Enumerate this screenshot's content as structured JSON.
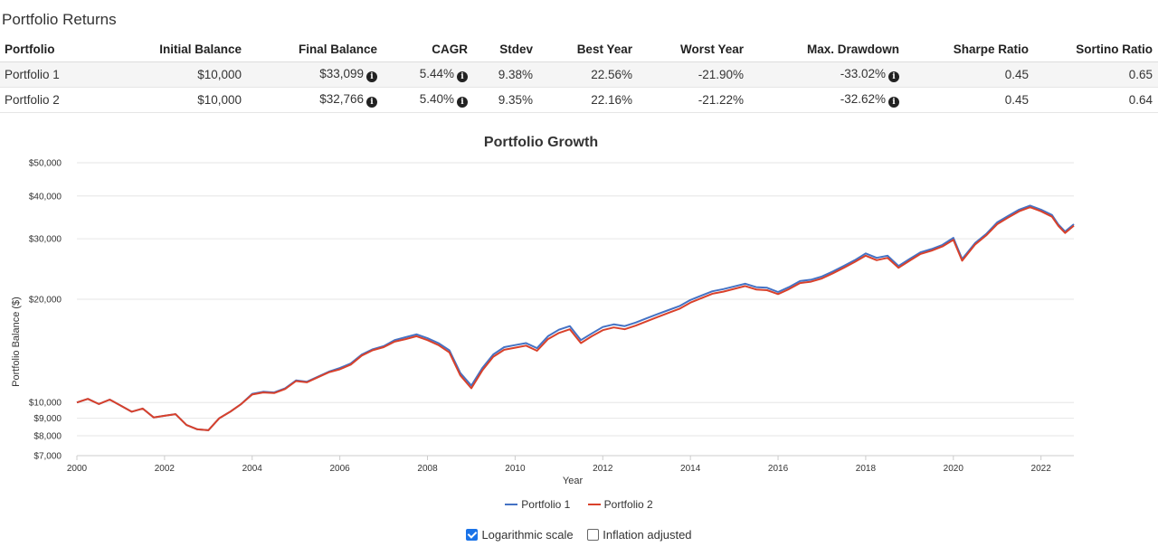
{
  "section_title": "Portfolio Returns",
  "table": {
    "headers": [
      "Portfolio",
      "Initial Balance",
      "Final Balance",
      "CAGR",
      "Stdev",
      "Best Year",
      "Worst Year",
      "Max. Drawdown",
      "Sharpe Ratio",
      "Sortino Ratio"
    ],
    "rows": [
      {
        "portfolio": "Portfolio 1",
        "initial_balance": "$10,000",
        "final_balance": "$33,099",
        "cagr": "5.44%",
        "stdev": "9.38%",
        "best_year": "22.56%",
        "worst_year": "-21.90%",
        "max_drawdown": "-33.02%",
        "sharpe": "0.45",
        "sortino": "0.65"
      },
      {
        "portfolio": "Portfolio 2",
        "initial_balance": "$10,000",
        "final_balance": "$32,766",
        "cagr": "5.40%",
        "stdev": "9.35%",
        "best_year": "22.16%",
        "worst_year": "-21.22%",
        "max_drawdown": "-32.62%",
        "sharpe": "0.45",
        "sortino": "0.64"
      }
    ]
  },
  "icons": {
    "info": "info-circle-icon"
  },
  "options": {
    "log_scale_label": "Logarithmic scale",
    "log_scale_checked": true,
    "inflation_label": "Inflation adjusted",
    "inflation_checked": false
  },
  "chart_data": {
    "type": "line",
    "title": "Portfolio Growth",
    "xlabel": "Year",
    "ylabel": "Portfolio Balance ($)",
    "yscale": "log",
    "ylim": [
      7000,
      50000
    ],
    "xlim": [
      2000,
      2022.75
    ],
    "x_ticks": [
      "2000",
      "2002",
      "2004",
      "2006",
      "2008",
      "2010",
      "2012",
      "2014",
      "2016",
      "2018",
      "2020",
      "2022"
    ],
    "y_ticks": [
      {
        "value": 7000,
        "label": "$7,000"
      },
      {
        "value": 8000,
        "label": "$8,000"
      },
      {
        "value": 9000,
        "label": "$9,000"
      },
      {
        "value": 10000,
        "label": "$10,000"
      },
      {
        "value": 20000,
        "label": "$20,000"
      },
      {
        "value": 30000,
        "label": "$30,000"
      },
      {
        "value": 40000,
        "label": "$40,000"
      },
      {
        "value": 50000,
        "label": "$50,000"
      }
    ],
    "grid": true,
    "legend": "bottom-center",
    "series": [
      {
        "name": "Portfolio 1",
        "color": "#4472c4",
        "points": [
          [
            2000.0,
            10000
          ],
          [
            2000.25,
            10250
          ],
          [
            2000.5,
            9900
          ],
          [
            2000.75,
            10200
          ],
          [
            2001.0,
            9800
          ],
          [
            2001.25,
            9400
          ],
          [
            2001.5,
            9600
          ],
          [
            2001.75,
            9050
          ],
          [
            2002.0,
            9150
          ],
          [
            2002.25,
            9250
          ],
          [
            2002.5,
            8600
          ],
          [
            2002.75,
            8350
          ],
          [
            2003.0,
            8300
          ],
          [
            2003.25,
            9000
          ],
          [
            2003.5,
            9400
          ],
          [
            2003.75,
            9900
          ],
          [
            2004.0,
            10600
          ],
          [
            2004.25,
            10750
          ],
          [
            2004.5,
            10700
          ],
          [
            2004.75,
            11000
          ],
          [
            2005.0,
            11600
          ],
          [
            2005.25,
            11500
          ],
          [
            2005.5,
            11900
          ],
          [
            2005.75,
            12300
          ],
          [
            2006.0,
            12600
          ],
          [
            2006.25,
            13000
          ],
          [
            2006.5,
            13800
          ],
          [
            2006.75,
            14300
          ],
          [
            2007.0,
            14600
          ],
          [
            2007.25,
            15200
          ],
          [
            2007.5,
            15500
          ],
          [
            2007.75,
            15800
          ],
          [
            2008.0,
            15400
          ],
          [
            2008.25,
            14900
          ],
          [
            2008.5,
            14200
          ],
          [
            2008.75,
            12200
          ],
          [
            2009.0,
            11200
          ],
          [
            2009.25,
            12600
          ],
          [
            2009.5,
            13800
          ],
          [
            2009.75,
            14500
          ],
          [
            2010.0,
            14700
          ],
          [
            2010.25,
            14900
          ],
          [
            2010.5,
            14400
          ],
          [
            2010.75,
            15600
          ],
          [
            2011.0,
            16300
          ],
          [
            2011.25,
            16700
          ],
          [
            2011.5,
            15200
          ],
          [
            2011.75,
            15900
          ],
          [
            2012.0,
            16600
          ],
          [
            2012.25,
            16900
          ],
          [
            2012.5,
            16700
          ],
          [
            2012.75,
            17100
          ],
          [
            2013.0,
            17600
          ],
          [
            2013.25,
            18100
          ],
          [
            2013.5,
            18600
          ],
          [
            2013.75,
            19100
          ],
          [
            2014.0,
            19900
          ],
          [
            2014.25,
            20500
          ],
          [
            2014.5,
            21100
          ],
          [
            2014.75,
            21400
          ],
          [
            2015.0,
            21800
          ],
          [
            2015.25,
            22200
          ],
          [
            2015.5,
            21700
          ],
          [
            2015.75,
            21600
          ],
          [
            2016.0,
            21000
          ],
          [
            2016.25,
            21700
          ],
          [
            2016.5,
            22600
          ],
          [
            2016.75,
            22800
          ],
          [
            2017.0,
            23300
          ],
          [
            2017.25,
            24100
          ],
          [
            2017.5,
            25000
          ],
          [
            2017.75,
            26000
          ],
          [
            2018.0,
            27200
          ],
          [
            2018.25,
            26400
          ],
          [
            2018.5,
            26800
          ],
          [
            2018.75,
            25000
          ],
          [
            2019.0,
            26200
          ],
          [
            2019.25,
            27400
          ],
          [
            2019.5,
            28000
          ],
          [
            2019.75,
            28800
          ],
          [
            2020.0,
            30200
          ],
          [
            2020.2,
            26200
          ],
          [
            2020.5,
            29200
          ],
          [
            2020.75,
            31000
          ],
          [
            2021.0,
            33500
          ],
          [
            2021.25,
            35000
          ],
          [
            2021.5,
            36500
          ],
          [
            2021.75,
            37500
          ],
          [
            2022.0,
            36500
          ],
          [
            2022.25,
            35200
          ],
          [
            2022.4,
            33000
          ],
          [
            2022.55,
            31500
          ],
          [
            2022.75,
            33099
          ]
        ]
      },
      {
        "name": "Portfolio 2",
        "color": "#d9412b",
        "points": [
          [
            2000.0,
            10000
          ],
          [
            2000.25,
            10250
          ],
          [
            2000.5,
            9900
          ],
          [
            2000.75,
            10200
          ],
          [
            2001.0,
            9800
          ],
          [
            2001.25,
            9400
          ],
          [
            2001.5,
            9600
          ],
          [
            2001.75,
            9050
          ],
          [
            2002.0,
            9150
          ],
          [
            2002.25,
            9250
          ],
          [
            2002.5,
            8600
          ],
          [
            2002.75,
            8350
          ],
          [
            2003.0,
            8300
          ],
          [
            2003.25,
            9000
          ],
          [
            2003.5,
            9400
          ],
          [
            2003.75,
            9900
          ],
          [
            2004.0,
            10550
          ],
          [
            2004.25,
            10700
          ],
          [
            2004.5,
            10650
          ],
          [
            2004.75,
            10950
          ],
          [
            2005.0,
            11550
          ],
          [
            2005.25,
            11450
          ],
          [
            2005.5,
            11850
          ],
          [
            2005.75,
            12250
          ],
          [
            2006.0,
            12500
          ],
          [
            2006.25,
            12900
          ],
          [
            2006.5,
            13700
          ],
          [
            2006.75,
            14200
          ],
          [
            2007.0,
            14500
          ],
          [
            2007.25,
            15050
          ],
          [
            2007.5,
            15300
          ],
          [
            2007.75,
            15600
          ],
          [
            2008.0,
            15200
          ],
          [
            2008.25,
            14700
          ],
          [
            2008.5,
            14000
          ],
          [
            2008.75,
            12000
          ],
          [
            2009.0,
            11000
          ],
          [
            2009.25,
            12400
          ],
          [
            2009.5,
            13600
          ],
          [
            2009.75,
            14250
          ],
          [
            2010.0,
            14450
          ],
          [
            2010.25,
            14650
          ],
          [
            2010.5,
            14150
          ],
          [
            2010.75,
            15300
          ],
          [
            2011.0,
            15950
          ],
          [
            2011.25,
            16350
          ],
          [
            2011.5,
            14900
          ],
          [
            2011.75,
            15600
          ],
          [
            2012.0,
            16250
          ],
          [
            2012.25,
            16550
          ],
          [
            2012.5,
            16350
          ],
          [
            2012.75,
            16750
          ],
          [
            2013.0,
            17250
          ],
          [
            2013.25,
            17750
          ],
          [
            2013.5,
            18250
          ],
          [
            2013.75,
            18750
          ],
          [
            2014.0,
            19550
          ],
          [
            2014.25,
            20150
          ],
          [
            2014.5,
            20750
          ],
          [
            2014.75,
            21050
          ],
          [
            2015.0,
            21450
          ],
          [
            2015.25,
            21850
          ],
          [
            2015.5,
            21350
          ],
          [
            2015.75,
            21250
          ],
          [
            2016.0,
            20700
          ],
          [
            2016.25,
            21400
          ],
          [
            2016.5,
            22300
          ],
          [
            2016.75,
            22500
          ],
          [
            2017.0,
            23000
          ],
          [
            2017.25,
            23800
          ],
          [
            2017.5,
            24700
          ],
          [
            2017.75,
            25700
          ],
          [
            2018.0,
            26800
          ],
          [
            2018.25,
            26000
          ],
          [
            2018.5,
            26400
          ],
          [
            2018.75,
            24700
          ],
          [
            2019.0,
            25900
          ],
          [
            2019.25,
            27100
          ],
          [
            2019.5,
            27700
          ],
          [
            2019.75,
            28500
          ],
          [
            2020.0,
            29800
          ],
          [
            2020.2,
            25900
          ],
          [
            2020.5,
            28900
          ],
          [
            2020.75,
            30700
          ],
          [
            2021.0,
            33100
          ],
          [
            2021.25,
            34600
          ],
          [
            2021.5,
            36100
          ],
          [
            2021.75,
            37100
          ],
          [
            2022.0,
            36100
          ],
          [
            2022.25,
            34800
          ],
          [
            2022.4,
            32700
          ],
          [
            2022.55,
            31200
          ],
          [
            2022.75,
            32766
          ]
        ]
      }
    ]
  }
}
